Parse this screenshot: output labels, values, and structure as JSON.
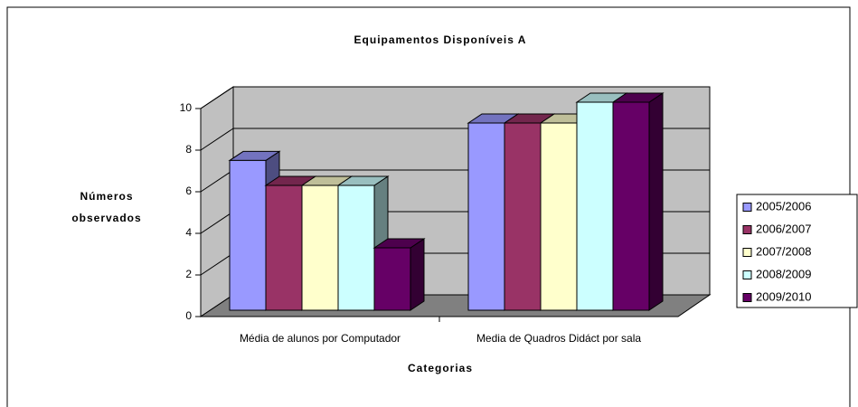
{
  "chart_data": {
    "type": "bar3d",
    "title": "Equipamentos Disponíveis A",
    "x_label": "Categorias",
    "y_label": [
      "Números",
      "observados"
    ],
    "categories": [
      "Média de alunos por Computador",
      "Media de Quadros Didáct por sala"
    ],
    "series": [
      {
        "name": "2005/2006",
        "color": "#9999ff",
        "values": [
          7.2,
          9
        ]
      },
      {
        "name": "2006/2007",
        "color": "#993366",
        "values": [
          6,
          9
        ]
      },
      {
        "name": "2007/2008",
        "color": "#ffffcc",
        "values": [
          6,
          9
        ]
      },
      {
        "name": "2008/2009",
        "color": "#ccffff",
        "values": [
          6,
          10
        ]
      },
      {
        "name": "2009/2010",
        "color": "#660066",
        "values": [
          3,
          10
        ]
      }
    ],
    "ylim": [
      0,
      10
    ],
    "yticks": [
      0,
      2,
      4,
      6,
      8,
      10
    ],
    "grid": true,
    "legend": "right"
  }
}
